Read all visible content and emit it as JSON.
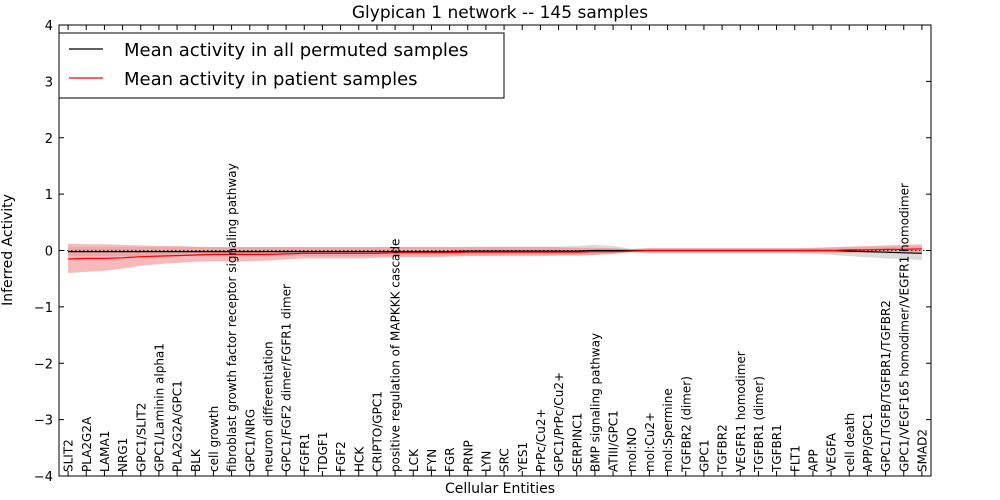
{
  "chart_data": {
    "type": "line",
    "title": "Glypican 1 network -- 145 samples",
    "xlabel": "Cellular Entities",
    "ylabel": "Inferred Activity",
    "ylim": [
      -4,
      4
    ],
    "yticks": [
      4,
      3,
      2,
      1,
      0,
      -1,
      -2,
      -3,
      -4
    ],
    "ytick_labels": [
      "4",
      "3",
      "2",
      "1",
      "0",
      "−1",
      "−2",
      "−3",
      "−4"
    ],
    "legend_position": "top-left",
    "colors": {
      "permuted": "#000000",
      "patient": "#ff0000",
      "permuted_band": "#bdbdbd",
      "patient_band": "#f08080",
      "zero_line": "#000000"
    },
    "categories": [
      "SLIT2",
      "PLA2G2A",
      "LAMA1",
      "NRG1",
      "GPC1/SLIT2",
      "GPC1/Laminin alpha1",
      "PLA2G2A/GPC1",
      "BLK",
      "cell growth",
      "fibroblast growth factor receptor signaling pathway",
      "GPC1/NRG",
      "neuron differentiation",
      "GPC1/FGF2 dimer/FGFR1 dimer",
      "FGFR1",
      "TDGF1",
      "FGF2",
      "HCK",
      "CRIPTO/GPC1",
      "positive regulation of MAPKKK cascade",
      "LCK",
      "FYN",
      "FGR",
      "PRNP",
      "LYN",
      "SRC",
      "YES1",
      "PrPc/Cu2+",
      "GPC1/PrPc/Cu2+",
      "SERPINC1",
      "BMP signaling pathway",
      "ATIII/GPC1",
      "mol:NO",
      "mol:Cu2+",
      "mol:Spermine",
      "TGFBR2 (dimer)",
      "GPC1",
      "TGFBR2",
      "VEGFR1 homodimer",
      "TGFBR1 (dimer)",
      "TGFBR1",
      "FLT1",
      "APP",
      "VEGFA",
      "cell death",
      "APP/GPC1",
      "GPC1/TGFB/TGFBR1/TGFBR2",
      "GPC1/VEGF165 homodimer/VEGFR1 homodimer",
      "SMAD2"
    ],
    "series": [
      {
        "name": "Mean activity in all permuted samples",
        "values": [
          -0.02,
          -0.02,
          -0.02,
          -0.02,
          -0.02,
          -0.02,
          -0.02,
          -0.02,
          -0.02,
          -0.02,
          -0.02,
          -0.02,
          -0.02,
          -0.02,
          -0.02,
          -0.02,
          -0.02,
          -0.02,
          -0.02,
          -0.02,
          -0.02,
          -0.02,
          -0.01,
          -0.01,
          -0.01,
          -0.01,
          -0.01,
          -0.01,
          -0.01,
          0.0,
          0.0,
          0.0,
          0.0,
          0.0,
          0.0,
          0.0,
          0.0,
          0.0,
          0.0,
          0.0,
          0.0,
          0.0,
          0.0,
          -0.01,
          -0.02,
          -0.03,
          -0.04,
          -0.05
        ],
        "lower": [
          -0.1,
          -0.1,
          -0.1,
          -0.1,
          -0.1,
          -0.1,
          -0.1,
          -0.1,
          -0.1,
          -0.1,
          -0.1,
          -0.1,
          -0.1,
          -0.1,
          -0.1,
          -0.1,
          -0.1,
          -0.1,
          -0.1,
          -0.1,
          -0.1,
          -0.09,
          -0.09,
          -0.09,
          -0.08,
          -0.08,
          -0.08,
          -0.08,
          -0.08,
          -0.08,
          -0.06,
          -0.03,
          -0.05,
          -0.05,
          -0.05,
          -0.05,
          -0.05,
          -0.05,
          -0.05,
          -0.05,
          -0.05,
          -0.06,
          -0.08,
          -0.1,
          -0.12,
          -0.14,
          -0.15,
          -0.17
        ],
        "upper": [
          0.06,
          0.06,
          0.06,
          0.06,
          0.06,
          0.06,
          0.06,
          0.06,
          0.06,
          0.06,
          0.06,
          0.06,
          0.06,
          0.06,
          0.06,
          0.06,
          0.06,
          0.06,
          0.06,
          0.06,
          0.06,
          0.06,
          0.07,
          0.07,
          0.07,
          0.07,
          0.07,
          0.07,
          0.08,
          0.1,
          0.08,
          0.03,
          0.04,
          0.04,
          0.04,
          0.04,
          0.04,
          0.04,
          0.04,
          0.04,
          0.04,
          0.04,
          0.05,
          0.06,
          0.06,
          0.07,
          0.07,
          0.08
        ]
      },
      {
        "name": "Mean activity in patient samples",
        "values": [
          -0.15,
          -0.14,
          -0.14,
          -0.13,
          -0.11,
          -0.1,
          -0.09,
          -0.08,
          -0.07,
          -0.07,
          -0.07,
          -0.07,
          -0.06,
          -0.05,
          -0.05,
          -0.05,
          -0.05,
          -0.05,
          -0.04,
          -0.04,
          -0.04,
          -0.04,
          -0.03,
          -0.03,
          -0.03,
          -0.03,
          -0.03,
          -0.03,
          -0.03,
          -0.02,
          -0.02,
          -0.01,
          0.0,
          0.0,
          0.0,
          0.0,
          0.0,
          0.0,
          0.0,
          0.0,
          0.0,
          0.0,
          0.0,
          0.01,
          0.01,
          0.02,
          0.02,
          0.03
        ],
        "lower": [
          -0.4,
          -0.38,
          -0.36,
          -0.32,
          -0.27,
          -0.24,
          -0.22,
          -0.2,
          -0.19,
          -0.19,
          -0.19,
          -0.18,
          -0.16,
          -0.14,
          -0.14,
          -0.14,
          -0.14,
          -0.13,
          -0.12,
          -0.12,
          -0.12,
          -0.11,
          -0.1,
          -0.1,
          -0.1,
          -0.1,
          -0.1,
          -0.09,
          -0.09,
          -0.08,
          -0.06,
          -0.03,
          -0.04,
          -0.04,
          -0.04,
          -0.04,
          -0.04,
          -0.04,
          -0.04,
          -0.04,
          -0.04,
          -0.04,
          -0.04,
          -0.04,
          -0.04,
          -0.04,
          -0.04,
          -0.04
        ],
        "upper": [
          0.12,
          0.11,
          0.11,
          0.1,
          0.09,
          0.08,
          0.08,
          0.07,
          0.06,
          0.06,
          0.06,
          0.06,
          0.06,
          0.06,
          0.06,
          0.06,
          0.06,
          0.06,
          0.06,
          0.06,
          0.06,
          0.06,
          0.06,
          0.06,
          0.06,
          0.06,
          0.06,
          0.06,
          0.05,
          0.05,
          0.04,
          0.02,
          0.04,
          0.04,
          0.04,
          0.04,
          0.04,
          0.04,
          0.04,
          0.04,
          0.04,
          0.05,
          0.06,
          0.07,
          0.08,
          0.09,
          0.1,
          0.11
        ]
      }
    ]
  }
}
